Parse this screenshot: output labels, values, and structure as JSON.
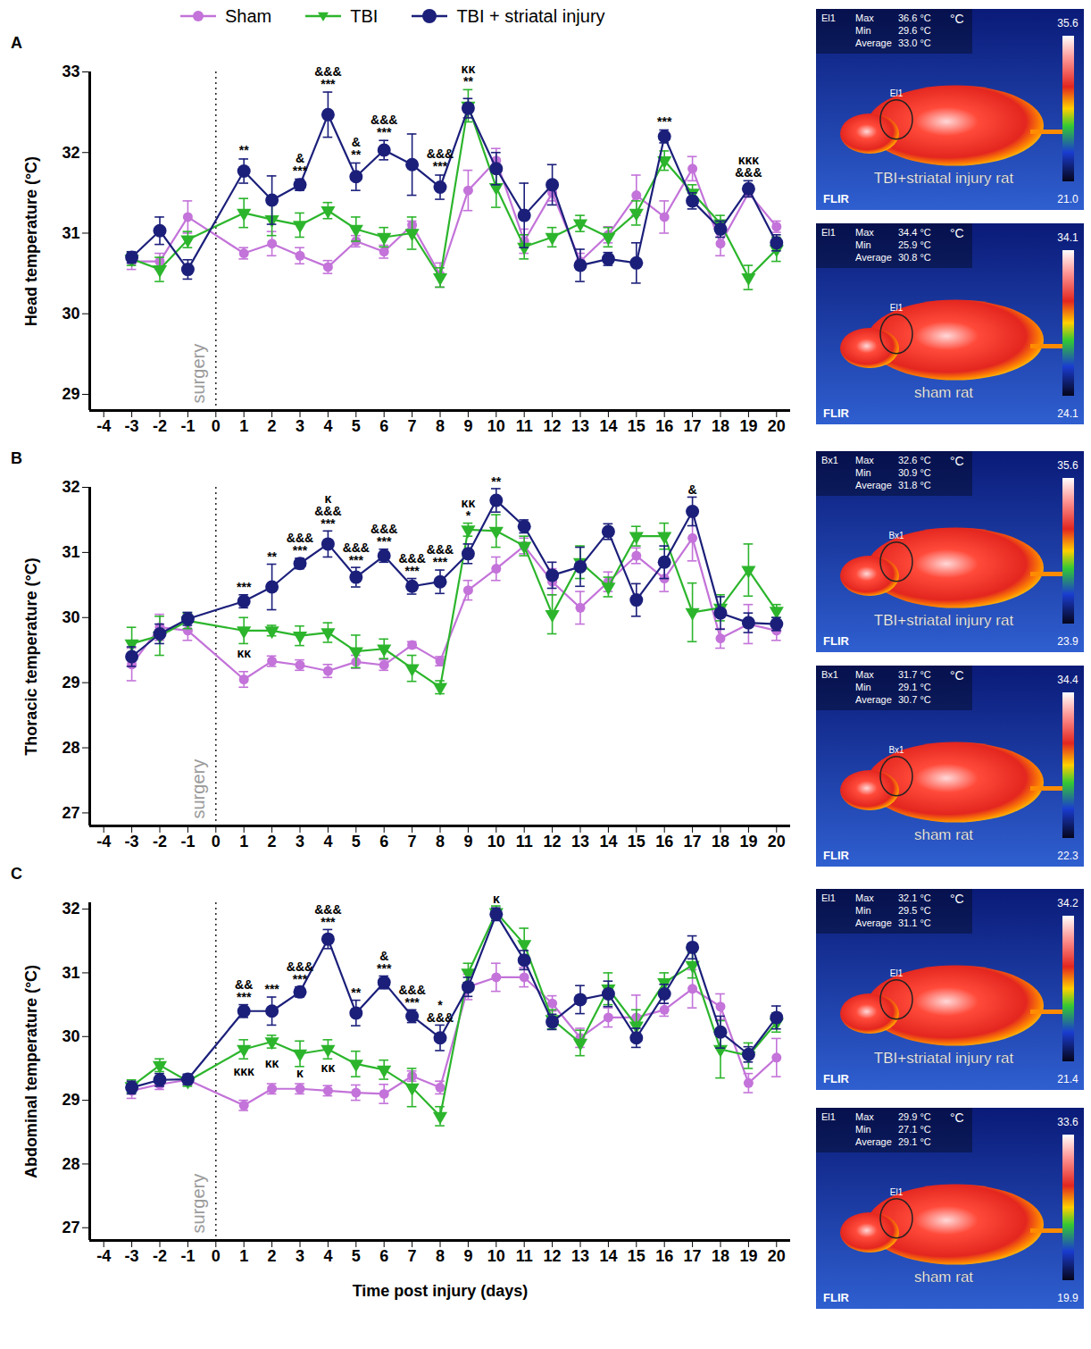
{
  "chart_data": [
    {
      "type": "line",
      "title": "A",
      "ylabel": "Head temperature (°C)",
      "xlabel": null,
      "x": [
        -3,
        -2,
        -1,
        1,
        2,
        3,
        4,
        5,
        6,
        7,
        8,
        9,
        10,
        11,
        12,
        13,
        14,
        15,
        16,
        17,
        18,
        19,
        20
      ],
      "xlim": [
        -4.5,
        20.5
      ],
      "xticks": [
        -4,
        -3,
        -2,
        -1,
        0,
        1,
        2,
        3,
        4,
        5,
        6,
        7,
        8,
        9,
        10,
        11,
        12,
        13,
        14,
        15,
        16,
        17,
        18,
        19,
        20
      ],
      "ylim": [
        28.8,
        33
      ],
      "yticks": [
        29,
        30,
        31,
        32,
        33
      ],
      "grid": false,
      "legend": "top",
      "vline": {
        "x": 0,
        "label": "surgery"
      },
      "series": [
        {
          "name": "Sham",
          "color": "#c373d9",
          "marker": "circle",
          "values": [
            30.65,
            30.65,
            31.2,
            30.75,
            30.87,
            30.72,
            30.58,
            30.9,
            30.77,
            31.1,
            30.48,
            31.53,
            31.9,
            30.9,
            31.5,
            30.65,
            30.98,
            31.47,
            31.2,
            31.8,
            30.87,
            31.5,
            31.08
          ],
          "errors": [
            0.1,
            0.1,
            0.2,
            0.07,
            0.15,
            0.1,
            0.08,
            0.07,
            0.08,
            0.05,
            0.15,
            0.25,
            0.15,
            0.15,
            0.1,
            0.1,
            0.1,
            0.25,
            0.2,
            0.15,
            0.15,
            0.05,
            0.07
          ]
        },
        {
          "name": "TBI",
          "color": "#2cb52c",
          "marker": "triangle-down",
          "values": [
            30.68,
            30.55,
            30.92,
            31.25,
            31.17,
            31.1,
            31.28,
            31.05,
            30.95,
            31.0,
            30.45,
            32.58,
            31.57,
            30.83,
            30.95,
            31.12,
            30.95,
            31.25,
            31.9,
            31.5,
            31.12,
            30.45,
            30.8
          ],
          "errors": [
            0.08,
            0.15,
            0.1,
            0.18,
            0.2,
            0.15,
            0.1,
            0.15,
            0.12,
            0.2,
            0.12,
            0.2,
            0.25,
            0.15,
            0.12,
            0.1,
            0.12,
            0.15,
            0.12,
            0.1,
            0.1,
            0.15,
            0.15
          ]
        },
        {
          "name": "TBI + striatal injury",
          "color": "#1b1f7a",
          "marker": "circle",
          "values": [
            30.7,
            31.03,
            30.55,
            31.77,
            31.41,
            31.6,
            32.47,
            31.7,
            32.03,
            31.85,
            31.57,
            32.55,
            31.8,
            31.22,
            31.6,
            30.6,
            30.68,
            30.63,
            32.2,
            31.4,
            31.05,
            31.55,
            30.88
          ],
          "errors": [
            0.07,
            0.17,
            0.12,
            0.15,
            0.3,
            0.07,
            0.28,
            0.17,
            0.12,
            0.38,
            0.15,
            0.12,
            0.2,
            0.4,
            0.25,
            0.2,
            0.08,
            0.25,
            0.08,
            0.1,
            0.1,
            0.1,
            0.1
          ]
        }
      ],
      "annotations": [
        {
          "x": 1,
          "y": 31.97,
          "text": [
            "**"
          ]
        },
        {
          "x": 3,
          "y": 31.72,
          "text": [
            "&",
            "***"
          ]
        },
        {
          "x": 4,
          "y": 32.8,
          "text": [
            "&&&",
            "***"
          ]
        },
        {
          "x": 5,
          "y": 31.92,
          "text": [
            "&",
            "**"
          ]
        },
        {
          "x": 6,
          "y": 32.2,
          "text": [
            "&&&",
            "***"
          ]
        },
        {
          "x": 8,
          "y": 31.77,
          "text": [
            "&&&",
            "***"
          ]
        },
        {
          "x": 9,
          "y": 32.83,
          "text": [
            "κκ",
            "**"
          ]
        },
        {
          "x": 16,
          "y": 32.33,
          "text": [
            "***"
          ]
        },
        {
          "x": 19,
          "y": 31.7,
          "text": [
            "κκκ",
            "&&&"
          ]
        }
      ]
    },
    {
      "type": "line",
      "title": "B",
      "ylabel": "Thoracic temperature (°C)",
      "xlabel": null,
      "x": [
        -3,
        -2,
        -1,
        1,
        2,
        3,
        4,
        5,
        6,
        7,
        8,
        9,
        10,
        11,
        12,
        13,
        14,
        15,
        16,
        17,
        18,
        19,
        20
      ],
      "xlim": [
        -4.5,
        20.5
      ],
      "xticks": [
        -4,
        -3,
        -2,
        -1,
        0,
        1,
        2,
        3,
        4,
        5,
        6,
        7,
        8,
        9,
        10,
        11,
        12,
        13,
        14,
        15,
        16,
        17,
        18,
        19,
        20
      ],
      "ylim": [
        26.8,
        32
      ],
      "yticks": [
        27,
        28,
        29,
        30,
        31,
        32
      ],
      "grid": false,
      "vline": {
        "x": 0,
        "label": "surgery"
      },
      "series": [
        {
          "name": "Sham",
          "color": "#c373d9",
          "marker": "circle",
          "values": [
            29.28,
            29.85,
            29.8,
            29.05,
            29.33,
            29.27,
            29.18,
            29.32,
            29.27,
            29.58,
            29.33,
            30.42,
            30.75,
            31.1,
            30.55,
            30.15,
            30.55,
            30.95,
            30.6,
            31.22,
            29.68,
            29.9,
            29.8
          ],
          "errors": [
            0.25,
            0.2,
            0.15,
            0.12,
            0.08,
            0.08,
            0.1,
            0.1,
            0.08,
            0.05,
            0.07,
            0.15,
            0.18,
            0.12,
            0.2,
            0.25,
            0.15,
            0.12,
            0.2,
            0.35,
            0.15,
            0.3,
            0.15
          ]
        },
        {
          "name": "TBI",
          "color": "#2cb52c",
          "marker": "triangle-down",
          "values": [
            29.6,
            29.72,
            29.95,
            29.8,
            29.8,
            29.72,
            29.77,
            29.48,
            29.52,
            29.22,
            28.93,
            31.35,
            31.33,
            31.1,
            30.05,
            30.85,
            30.47,
            31.25,
            31.25,
            30.08,
            30.15,
            30.73,
            30.1
          ],
          "errors": [
            0.25,
            0.3,
            0.12,
            0.2,
            0.08,
            0.15,
            0.15,
            0.25,
            0.15,
            0.2,
            0.1,
            0.1,
            0.25,
            0.15,
            0.3,
            0.25,
            0.15,
            0.15,
            0.2,
            0.45,
            0.2,
            0.4,
            0.1
          ]
        },
        {
          "name": "TBI + striatal injury",
          "color": "#1b1f7a",
          "marker": "circle",
          "values": [
            29.4,
            29.75,
            29.98,
            30.25,
            30.47,
            30.83,
            31.13,
            30.62,
            30.95,
            30.48,
            30.55,
            30.98,
            31.8,
            31.4,
            30.65,
            30.78,
            31.32,
            30.27,
            30.85,
            31.63,
            30.07,
            29.92,
            29.9
          ],
          "errors": [
            0.15,
            0.15,
            0.1,
            0.1,
            0.35,
            0.08,
            0.2,
            0.15,
            0.1,
            0.12,
            0.18,
            0.15,
            0.18,
            0.1,
            0.2,
            0.3,
            0.12,
            0.25,
            0.25,
            0.22,
            0.25,
            0.15,
            0.1
          ]
        }
      ],
      "annotations": [
        {
          "x": 1,
          "y": 30.4,
          "text": [
            "***"
          ]
        },
        {
          "x": 1,
          "y": 29.38,
          "text": [
            "κκ"
          ]
        },
        {
          "x": 2,
          "y": 30.87,
          "text": [
            "**"
          ]
        },
        {
          "x": 3,
          "y": 30.96,
          "text": [
            "&&&",
            "***"
          ]
        },
        {
          "x": 4,
          "y": 31.38,
          "text": [
            "κ",
            "&&&",
            "***"
          ]
        },
        {
          "x": 5,
          "y": 30.82,
          "text": [
            "&&&",
            "***"
          ]
        },
        {
          "x": 6,
          "y": 31.1,
          "text": [
            "&&&",
            "***"
          ]
        },
        {
          "x": 7,
          "y": 30.65,
          "text": [
            "&&&",
            "***"
          ]
        },
        {
          "x": 8,
          "y": 30.78,
          "text": [
            "&&&",
            "***"
          ]
        },
        {
          "x": 9,
          "y": 31.5,
          "text": [
            "κκ",
            "*"
          ]
        },
        {
          "x": 10,
          "y": 32.02,
          "text": [
            "**"
          ]
        },
        {
          "x": 17,
          "y": 31.9,
          "text": [
            "&"
          ]
        }
      ]
    },
    {
      "type": "line",
      "title": "C",
      "ylabel": "Abdominal temperature (°C)",
      "xlabel": "Time post injury (days)",
      "x": [
        -3,
        -2,
        -1,
        1,
        2,
        3,
        4,
        5,
        6,
        7,
        8,
        9,
        10,
        11,
        12,
        13,
        14,
        15,
        16,
        17,
        18,
        19,
        20
      ],
      "xlim": [
        -4.5,
        20.5
      ],
      "xticks": [
        -4,
        -3,
        -2,
        -1,
        0,
        1,
        2,
        3,
        4,
        5,
        6,
        7,
        8,
        9,
        10,
        11,
        12,
        13,
        14,
        15,
        16,
        17,
        18,
        19,
        20
      ],
      "ylim": [
        26.8,
        32.1
      ],
      "yticks": [
        27,
        28,
        29,
        30,
        31,
        32
      ],
      "grid": false,
      "vline": {
        "x": 0,
        "label": "surgery"
      },
      "series": [
        {
          "name": "Sham",
          "color": "#c373d9",
          "marker": "circle",
          "values": [
            29.15,
            29.25,
            29.32,
            28.92,
            29.18,
            29.18,
            29.15,
            29.12,
            29.1,
            29.38,
            29.2,
            30.78,
            30.93,
            30.93,
            30.52,
            29.98,
            30.3,
            30.3,
            30.42,
            30.75,
            30.47,
            29.27,
            29.67
          ],
          "errors": [
            0.12,
            0.08,
            0.08,
            0.08,
            0.08,
            0.08,
            0.08,
            0.12,
            0.15,
            0.08,
            0.1,
            0.2,
            0.22,
            0.15,
            0.12,
            0.15,
            0.15,
            0.35,
            0.1,
            0.3,
            0.2,
            0.15,
            0.3
          ]
        },
        {
          "name": "TBI",
          "color": "#2cb52c",
          "marker": "triangle-down",
          "values": [
            29.22,
            29.55,
            29.3,
            29.8,
            29.92,
            29.73,
            29.8,
            29.57,
            29.48,
            29.2,
            28.75,
            31.0,
            31.95,
            31.45,
            30.27,
            29.9,
            30.75,
            30.17,
            30.85,
            31.12,
            29.8,
            29.7,
            30.22
          ],
          "errors": [
            0.1,
            0.1,
            0.08,
            0.15,
            0.1,
            0.2,
            0.15,
            0.2,
            0.15,
            0.3,
            0.15,
            0.15,
            0.1,
            0.25,
            0.15,
            0.2,
            0.25,
            0.25,
            0.15,
            0.2,
            0.45,
            0.2,
            0.15
          ]
        },
        {
          "name": "TBI + striatal injury",
          "color": "#1b1f7a",
          "marker": "circle",
          "values": [
            29.2,
            29.32,
            29.33,
            30.4,
            30.4,
            30.7,
            31.53,
            30.37,
            30.85,
            30.32,
            29.98,
            30.78,
            31.92,
            31.2,
            30.23,
            30.58,
            30.67,
            29.98,
            30.67,
            31.4,
            30.07,
            29.72,
            30.3
          ],
          "errors": [
            0.1,
            0.1,
            0.08,
            0.1,
            0.22,
            0.08,
            0.15,
            0.2,
            0.1,
            0.1,
            0.2,
            0.15,
            0.1,
            0.15,
            0.12,
            0.22,
            0.2,
            0.15,
            0.15,
            0.18,
            0.25,
            0.12,
            0.18
          ]
        }
      ],
      "annotations": [
        {
          "x": 1,
          "y": 30.55,
          "text": [
            "&&",
            "***"
          ]
        },
        {
          "x": 1,
          "y": 29.38,
          "text": [
            "κκκ"
          ]
        },
        {
          "x": 2,
          "y": 30.67,
          "text": [
            "***"
          ]
        },
        {
          "x": 2,
          "y": 29.52,
          "text": [
            "κκ"
          ]
        },
        {
          "x": 3,
          "y": 30.83,
          "text": [
            "&&&",
            "***"
          ]
        },
        {
          "x": 3,
          "y": 29.36,
          "text": [
            "κ"
          ]
        },
        {
          "x": 4,
          "y": 31.73,
          "text": [
            "&&&",
            "***"
          ]
        },
        {
          "x": 4,
          "y": 29.45,
          "text": [
            "κκ"
          ]
        },
        {
          "x": 5,
          "y": 30.62,
          "text": [
            "**"
          ]
        },
        {
          "x": 6,
          "y": 31.0,
          "text": [
            "&",
            "***"
          ]
        },
        {
          "x": 7,
          "y": 30.47,
          "text": [
            "&&&",
            "***"
          ]
        },
        {
          "x": 8,
          "y": 30.23,
          "text": [
            "*",
            "&&&"
          ]
        },
        {
          "x": 10,
          "y": 32.1,
          "text": [
            "κ"
          ]
        }
      ]
    }
  ],
  "thermal_images": [
    {
      "tool": "El1",
      "unit": "°C",
      "readings": [
        [
          "Max",
          "36.6 °C"
        ],
        [
          "Min",
          "29.6 °C"
        ],
        [
          "Average",
          "33.0 °C"
        ]
      ],
      "scale_top": "35.6",
      "scale_bottom": "21.0",
      "label": "TBI+striatal injury rat",
      "brand": "FLIR"
    },
    {
      "tool": "El1",
      "unit": "°C",
      "readings": [
        [
          "Max",
          "34.4 °C"
        ],
        [
          "Min",
          "25.9 °C"
        ],
        [
          "Average",
          "30.8 °C"
        ]
      ],
      "scale_top": "34.1",
      "scale_bottom": "24.1",
      "label": "sham rat",
      "brand": "FLIR"
    },
    {
      "tool": "Bx1",
      "unit": "°C",
      "readings": [
        [
          "Max",
          "32.6 °C"
        ],
        [
          "Min",
          "30.9 °C"
        ],
        [
          "Average",
          "31.8 °C"
        ]
      ],
      "scale_top": "35.6",
      "scale_bottom": "23.9",
      "label": "TBI+striatal injury rat",
      "brand": "FLIR"
    },
    {
      "tool": "Bx1",
      "unit": "°C",
      "readings": [
        [
          "Max",
          "31.7 °C"
        ],
        [
          "Min",
          "29.1 °C"
        ],
        [
          "Average",
          "30.7 °C"
        ]
      ],
      "scale_top": "34.4",
      "scale_bottom": "22.3",
      "label": "sham rat",
      "brand": "FLIR"
    },
    {
      "tool": "El1",
      "unit": "°C",
      "readings": [
        [
          "Max",
          "32.1 °C"
        ],
        [
          "Min",
          "29.5 °C"
        ],
        [
          "Average",
          "31.1 °C"
        ]
      ],
      "scale_top": "34.2",
      "scale_bottom": "21.4",
      "label": "TBI+striatal injury rat",
      "brand": "FLIR"
    },
    {
      "tool": "El1",
      "unit": "°C",
      "readings": [
        [
          "Max",
          "29.9 °C"
        ],
        [
          "Min",
          "27.1 °C"
        ],
        [
          "Average",
          "29.1 °C"
        ]
      ],
      "scale_top": "33.6",
      "scale_bottom": "19.9",
      "label": "sham rat",
      "brand": "FLIR"
    }
  ]
}
